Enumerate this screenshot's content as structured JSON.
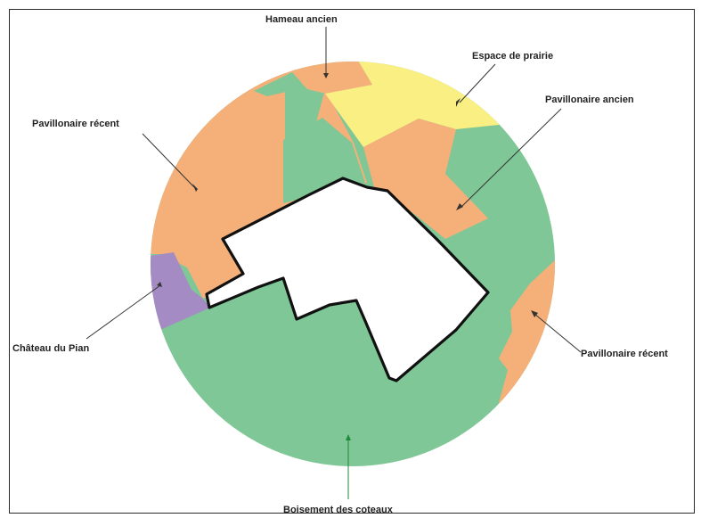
{
  "colors": {
    "boisement": "#7fc796",
    "pavillonaire": "#f5b07a",
    "prairie": "#f9ef82",
    "chateau": "#a48bc4",
    "site_outline": "#111111",
    "leader": "#333333",
    "leader_forest": "#1f8a3a"
  },
  "labels": {
    "hameau_ancien": "Hameau ancien",
    "espace_prairie": "Espace de prairie",
    "pavillonaire_recent_left": "Pavillonaire récent",
    "pavillonaire_ancien": "Pavillonaire ancien",
    "chateau_du_pian": "Château du Pian",
    "pavillonaire_recent_right": "Pavillonaire récent",
    "boisement_des_coteaux": "Boisement des coteaux"
  }
}
